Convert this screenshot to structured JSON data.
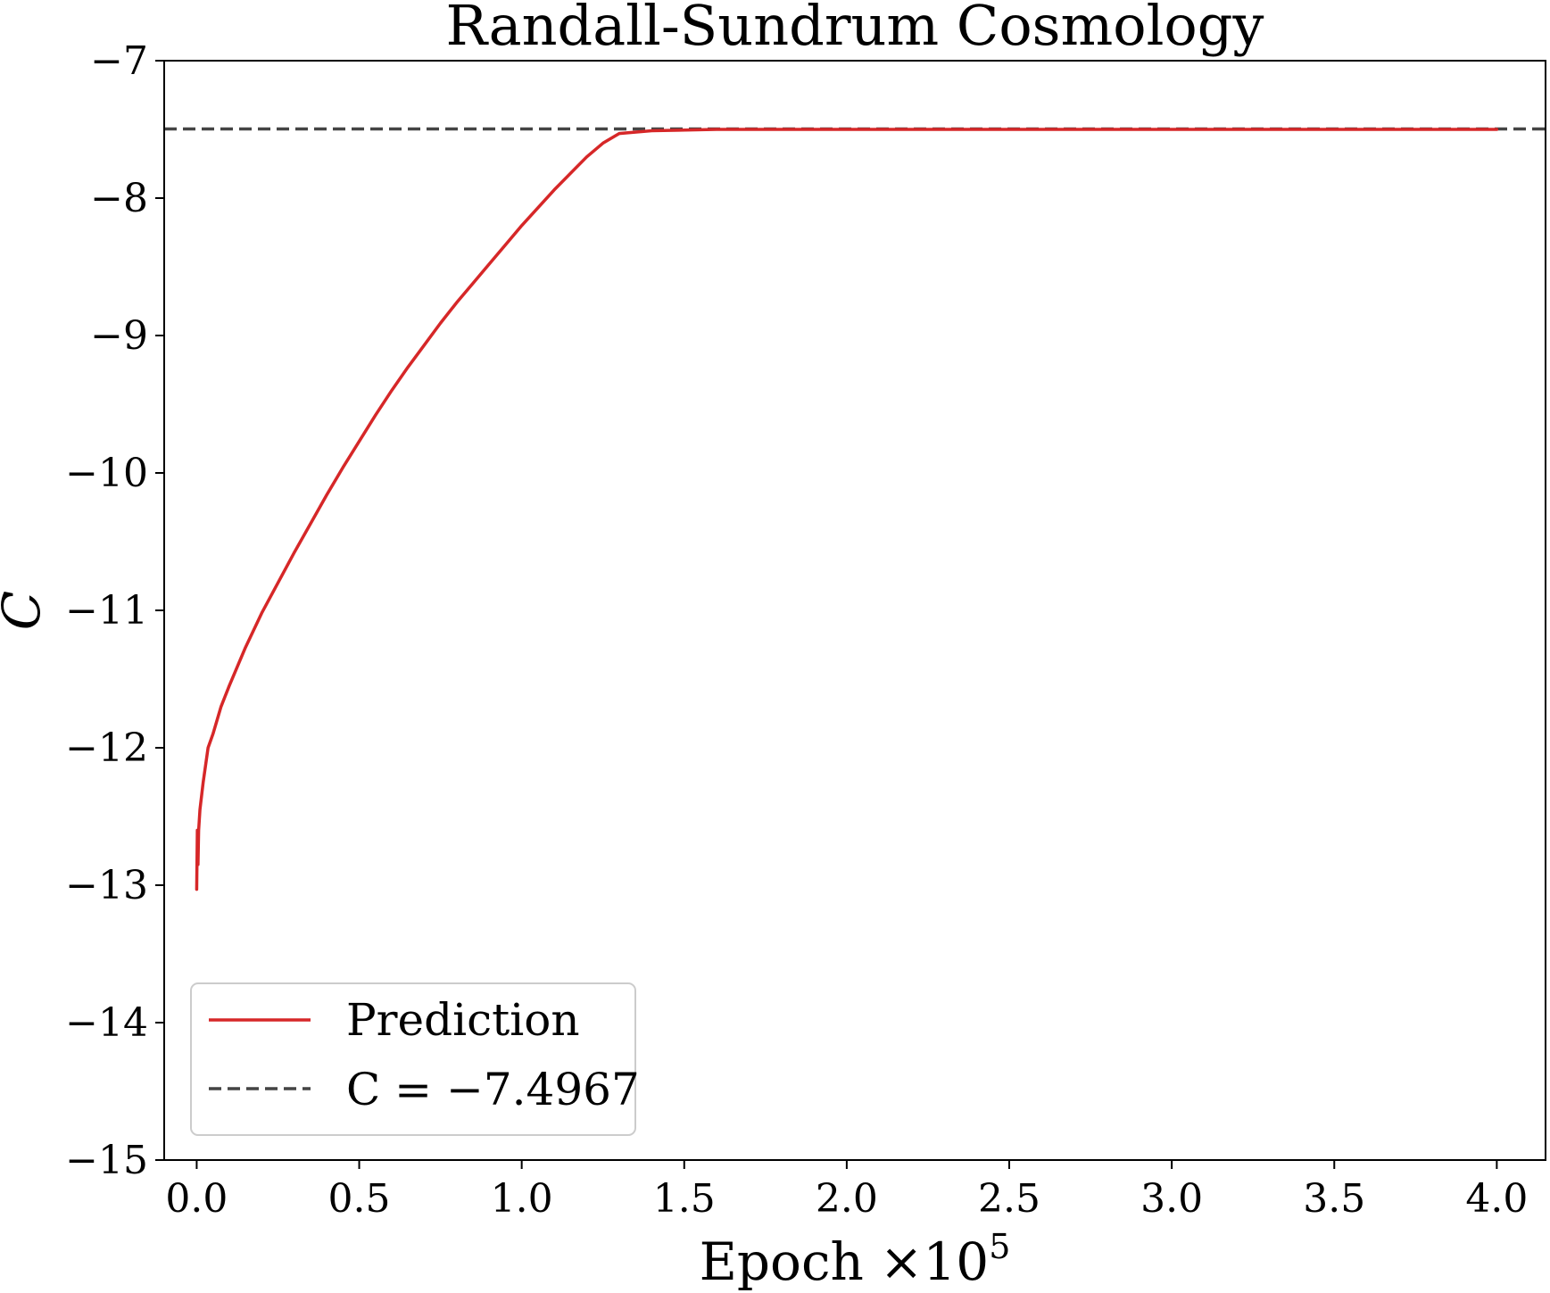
{
  "chart_data": {
    "type": "line",
    "title": "Randall-Sundrum Cosmology",
    "xlabel": "Epoch",
    "xlabel_scale": "×10",
    "xlabel_exponent": "5",
    "ylabel": "C",
    "xlim": [
      -0.1,
      4.15
    ],
    "ylim": [
      -15,
      -7
    ],
    "xticks": [
      0.0,
      0.5,
      1.0,
      1.5,
      2.0,
      2.5,
      3.0,
      3.5,
      4.0
    ],
    "xtick_labels": [
      "0.0",
      "0.5",
      "1.0",
      "1.5",
      "2.0",
      "2.5",
      "3.0",
      "3.5",
      "4.0"
    ],
    "yticks": [
      -15,
      -14,
      -13,
      -12,
      -11,
      -10,
      -9,
      -8,
      -7
    ],
    "ytick_labels": [
      "−15",
      "−14",
      "−13",
      "−12",
      "−11",
      "−10",
      "−9",
      "−8",
      "−7"
    ],
    "grid": false,
    "legend_position": "lower-left",
    "series": [
      {
        "name": "Prediction",
        "color": "#d62728",
        "style": "solid",
        "x": [
          0.0,
          0.002,
          0.004,
          0.006,
          0.01,
          0.02,
          0.035,
          0.05,
          0.075,
          0.1,
          0.15,
          0.2,
          0.25,
          0.3,
          0.35,
          0.4,
          0.45,
          0.5,
          0.55,
          0.6,
          0.65,
          0.7,
          0.75,
          0.8,
          0.85,
          0.9,
          0.95,
          1.0,
          1.05,
          1.1,
          1.15,
          1.2,
          1.25,
          1.3,
          1.4,
          1.6,
          1.8,
          2.0,
          2.5,
          3.0,
          3.5,
          4.0
        ],
        "y": [
          -13.03,
          -12.6,
          -12.85,
          -12.6,
          -12.45,
          -12.25,
          -12.0,
          -11.9,
          -11.7,
          -11.55,
          -11.27,
          -11.02,
          -10.8,
          -10.58,
          -10.37,
          -10.16,
          -9.96,
          -9.77,
          -9.58,
          -9.4,
          -9.23,
          -9.07,
          -8.91,
          -8.76,
          -8.62,
          -8.48,
          -8.34,
          -8.2,
          -8.07,
          -7.94,
          -7.82,
          -7.7,
          -7.6,
          -7.53,
          -7.51,
          -7.5,
          -7.5,
          -7.5,
          -7.5,
          -7.5,
          -7.5,
          -7.5
        ]
      },
      {
        "name": "C = −7.4967",
        "color": "#444444",
        "style": "dashed",
        "x": [
          -0.1,
          4.15
        ],
        "y": [
          -7.4967,
          -7.4967
        ]
      }
    ]
  }
}
